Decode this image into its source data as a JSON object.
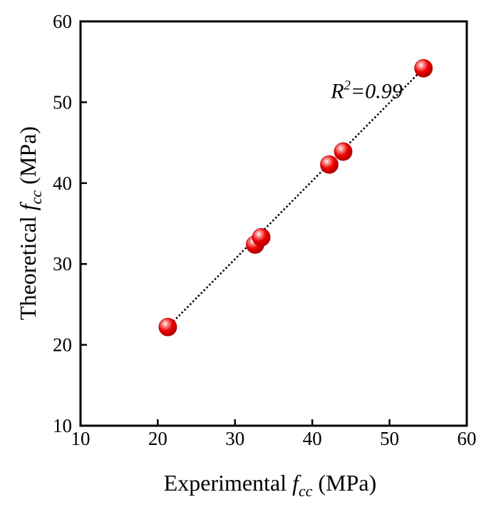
{
  "chart_data": {
    "type": "scatter",
    "xlabel": {
      "prefix": "Experimental ",
      "var": "f",
      "sub": "cc",
      "suffix": " (MPa)"
    },
    "ylabel": {
      "prefix": "Theoretical ",
      "var": "f",
      "sub": "cc",
      "suffix": " (MPa)"
    },
    "xlim": [
      10,
      60
    ],
    "ylim": [
      10,
      60
    ],
    "xticks": [
      10,
      20,
      30,
      40,
      50,
      60
    ],
    "yticks": [
      10,
      20,
      30,
      40,
      50,
      60
    ],
    "grid": false,
    "series": [
      {
        "points": [
          {
            "x": 21.3,
            "y": 22.2
          },
          {
            "x": 32.6,
            "y": 32.4
          },
          {
            "x": 33.4,
            "y": 33.3
          },
          {
            "x": 42.2,
            "y": 42.3
          },
          {
            "x": 44.0,
            "y": 43.9
          },
          {
            "x": 54.4,
            "y": 54.2
          }
        ],
        "color": "#e00000",
        "fit_line": {
          "from": {
            "x": 21.3,
            "y": 22.2
          },
          "to": {
            "x": 54.4,
            "y": 54.2
          },
          "style": "dotted",
          "color": "#000000"
        }
      }
    ],
    "annotation": {
      "base": "R",
      "sup": "2",
      "rest": "=0.99",
      "x": 42.4,
      "y": 50.5
    }
  }
}
